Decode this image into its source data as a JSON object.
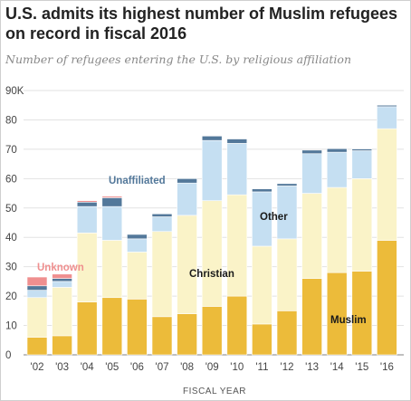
{
  "title": "U.S. admits its highest number of Muslim refugees on record in fiscal 2016",
  "subtitle": "Number of refugees entering the U.S. by religious affiliation",
  "chart_data": {
    "type": "bar",
    "stacked": true,
    "categories": [
      "'02",
      "'03",
      "'04",
      "'05",
      "'06",
      "'07",
      "'08",
      "'09",
      "'10",
      "'11",
      "'12",
      "'13",
      "'14",
      "'15",
      "'16"
    ],
    "series": [
      {
        "name": "Muslim",
        "color": "#ecbb3a",
        "values": [
          6,
          6.5,
          18,
          19.5,
          19,
          13,
          14,
          16.5,
          20,
          10.5,
          15,
          26,
          28,
          28.5,
          39
        ]
      },
      {
        "name": "Christian",
        "color": "#faf3c8",
        "values": [
          13.5,
          16.5,
          23.5,
          19.5,
          16,
          29,
          33.5,
          36,
          34.5,
          26.5,
          24.5,
          29,
          29,
          31.5,
          38
        ]
      },
      {
        "name": "Other",
        "color": "#c5dff2",
        "values": [
          2.5,
          2,
          9,
          11.5,
          4.5,
          5,
          11,
          20.5,
          17.5,
          18.5,
          18,
          13.5,
          12,
          9.5,
          7.5
        ]
      },
      {
        "name": "Unaffiliated",
        "color": "#53789a",
        "values": [
          1.5,
          1,
          1.5,
          3,
          1.5,
          1,
          1.5,
          1.5,
          1.5,
          1,
          0.8,
          1.2,
          1.2,
          0.6,
          0.5
        ]
      },
      {
        "name": "Unknown",
        "color": "#ef8f8f",
        "values": [
          3,
          1.5,
          0.5,
          0.5,
          0,
          0,
          0,
          0,
          0,
          0,
          0,
          0,
          0,
          0,
          0
        ]
      }
    ],
    "ylim": [
      0,
      90
    ],
    "yticks": [
      0,
      10,
      20,
      30,
      40,
      50,
      60,
      70,
      80,
      90
    ],
    "ytick_labels": [
      "0",
      "10",
      "20",
      "30",
      "40",
      "50",
      "60",
      "70",
      "80",
      "90K"
    ],
    "xlabel": "FISCAL YEAR",
    "grid": true,
    "annotations": [
      {
        "text": "Unknown",
        "color": "#ef8f8f"
      },
      {
        "text": "Unaffiliated",
        "color": "#53789a"
      },
      {
        "text": "Other",
        "color": "#1a1a1a"
      },
      {
        "text": "Christian",
        "color": "#1a1a1a"
      },
      {
        "text": "Muslim",
        "color": "#1a1a1a"
      }
    ]
  }
}
